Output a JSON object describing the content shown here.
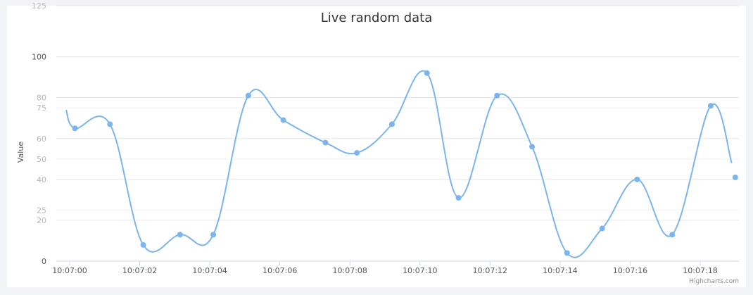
{
  "chart_data": {
    "type": "line",
    "title": "Live random data",
    "ylabel": "Value",
    "xlabel": "",
    "ylim": [
      0,
      125
    ],
    "y_ticks_major": [
      0,
      20,
      40,
      60,
      80,
      100,
      125
    ],
    "y_ticks_minor": [
      25,
      50,
      75
    ],
    "x_tick_labels": [
      "10:07:00",
      "10:07:02",
      "10:07:04",
      "10:07:06",
      "10:07:08",
      "10:07:10",
      "10:07:12",
      "10:07:14",
      "10:07:16",
      "10:07:18"
    ],
    "grid": true,
    "legend": "none",
    "series": [
      {
        "color": "#7cb5ec",
        "x": [
          "10:06:59.9",
          "10:07:00.2",
          "10:07:01.2",
          "10:07:02.1",
          "10:07:03.2",
          "10:07:04.1",
          "10:07:05.1",
          "10:07:06.1",
          "10:07:07.3",
          "10:07:08.2",
          "10:07:09.2",
          "10:07:10.2",
          "10:07:11.1",
          "10:07:12.2",
          "10:07:13.2",
          "10:07:14.2",
          "10:07:15.2",
          "10:07:16.2",
          "10:07:17.2",
          "10:07:18.3",
          "10:07:18.9"
        ],
        "t": [
          -0.1,
          0.15,
          1.15,
          2.1,
          3.15,
          4.1,
          5.1,
          6.1,
          7.3,
          8.2,
          9.2,
          10.2,
          11.1,
          12.2,
          13.2,
          14.2,
          15.2,
          16.2,
          17.2,
          18.3,
          18.9
        ],
        "values": [
          74,
          65,
          67,
          8,
          13,
          13,
          81,
          69,
          58,
          53,
          67,
          92,
          31,
          81,
          56,
          4,
          16,
          40,
          13,
          76,
          48
        ],
        "markers": [
          false,
          true,
          true,
          true,
          true,
          true,
          true,
          true,
          true,
          true,
          true,
          true,
          true,
          true,
          true,
          true,
          true,
          true,
          true,
          true,
          false
        ]
      }
    ],
    "extra_points": [
      {
        "t": 19.0,
        "value": 41
      }
    ]
  },
  "credits": "Highcharts.com",
  "colors": {
    "line": "#7cb5ec",
    "grid": "#e6e6e6",
    "axis": "#ccd6eb"
  }
}
